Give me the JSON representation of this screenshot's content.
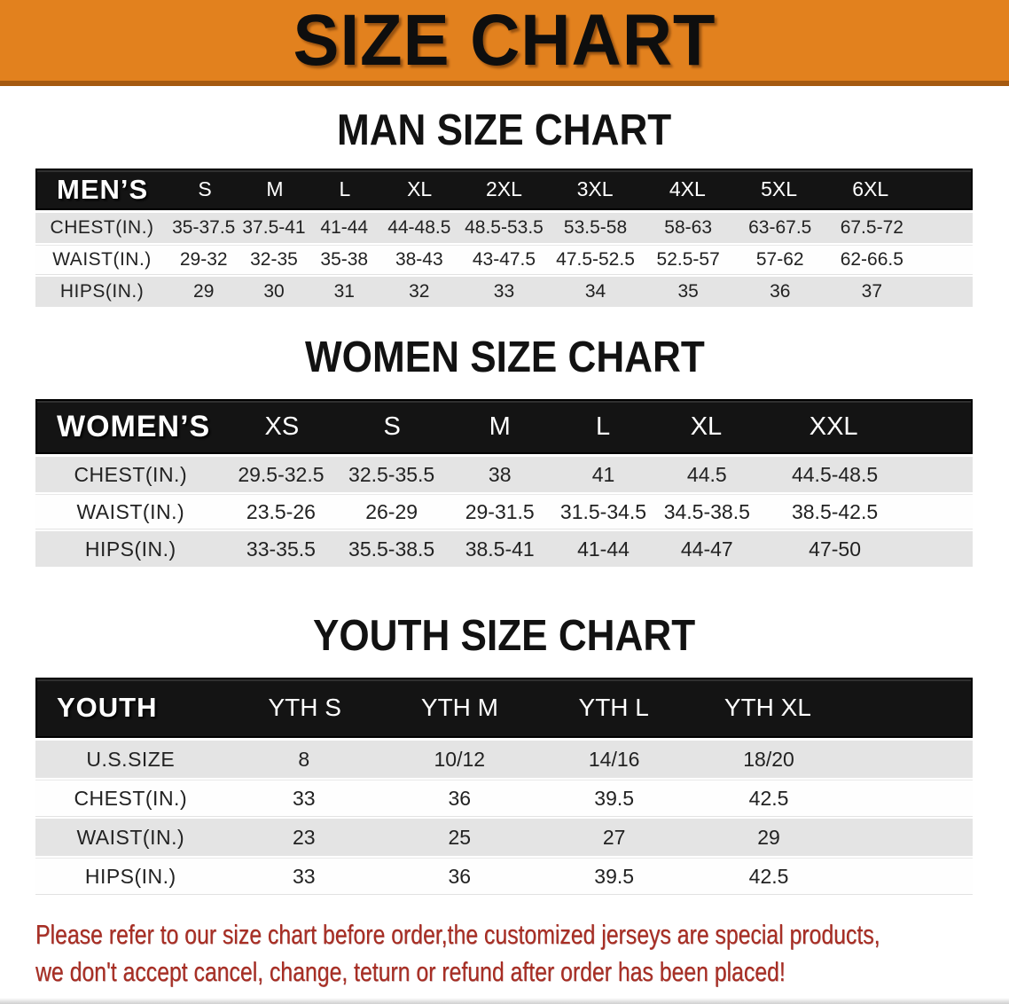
{
  "banner": {
    "title": "SIZE CHART",
    "background": "#e2811e",
    "edge": "#a55a10"
  },
  "sections": [
    {
      "key": "men",
      "title": "MAN SIZE CHART",
      "header_label": "MEN’S",
      "columns": [
        "S",
        "M",
        "L",
        "XL",
        "2XL",
        "3XL",
        "4XL",
        "5XL",
        "6XL"
      ],
      "rows": [
        {
          "label": "CHEST(IN.)",
          "shaded": true,
          "values": [
            "35-37.5",
            "37.5-41",
            "41-44",
            "44-48.5",
            "48.5-53.5",
            "53.5-58",
            "58-63",
            "63-67.5",
            "67.5-72"
          ]
        },
        {
          "label": "WAIST(IN.)",
          "shaded": false,
          "values": [
            "29-32",
            "32-35",
            "35-38",
            "38-43",
            "43-47.5",
            "47.5-52.5",
            "52.5-57",
            "57-62",
            "62-66.5"
          ]
        },
        {
          "label": "HIPS(IN.)",
          "shaded": true,
          "values": [
            "29",
            "30",
            "31",
            "32",
            "33",
            "34",
            "35",
            "36",
            "37"
          ]
        }
      ]
    },
    {
      "key": "women",
      "title": "WOMEN SIZE CHART",
      "header_label": "WOMEN’S",
      "columns": [
        "XS",
        "S",
        "M",
        "L",
        "XL",
        "XXL"
      ],
      "rows": [
        {
          "label": "CHEST(IN.)",
          "shaded": true,
          "values": [
            "29.5-32.5",
            "32.5-35.5",
            "38",
            "41",
            "44.5",
            "44.5-48.5"
          ]
        },
        {
          "label": "WAIST(IN.)",
          "shaded": false,
          "values": [
            "23.5-26",
            "26-29",
            "29-31.5",
            "31.5-34.5",
            "34.5-38.5",
            "38.5-42.5"
          ]
        },
        {
          "label": "HIPS(IN.)",
          "shaded": true,
          "values": [
            "33-35.5",
            "35.5-38.5",
            "38.5-41",
            "41-44",
            "44-47",
            "47-50"
          ]
        }
      ]
    },
    {
      "key": "youth",
      "title": "YOUTH SIZE CHART",
      "header_label": "YOUTH",
      "columns": [
        "YTH S",
        "YTH M",
        "YTH L",
        "YTH XL"
      ],
      "rows": [
        {
          "label": "U.S.SIZE",
          "shaded": true,
          "values": [
            "8",
            "10/12",
            "14/16",
            "18/20"
          ]
        },
        {
          "label": "CHEST(IN.)",
          "shaded": false,
          "values": [
            "33",
            "36",
            "39.5",
            "42.5"
          ]
        },
        {
          "label": "WAIST(IN.)",
          "shaded": true,
          "values": [
            "23",
            "25",
            "27",
            "29"
          ]
        },
        {
          "label": "HIPS(IN.)",
          "shaded": false,
          "values": [
            "33",
            "36",
            "39.5",
            "42.5"
          ]
        }
      ]
    }
  ],
  "disclaimer": {
    "line1": "Please refer to our size chart before order,the customized jerseys are special products,",
    "line2": "we don't accept cancel, change, teturn or refund after order has been placed!",
    "color": "#a82e24"
  },
  "colors": {
    "shaded_row": "#e4e4e4",
    "header_bar": "#141414",
    "title_text": "#121212"
  }
}
